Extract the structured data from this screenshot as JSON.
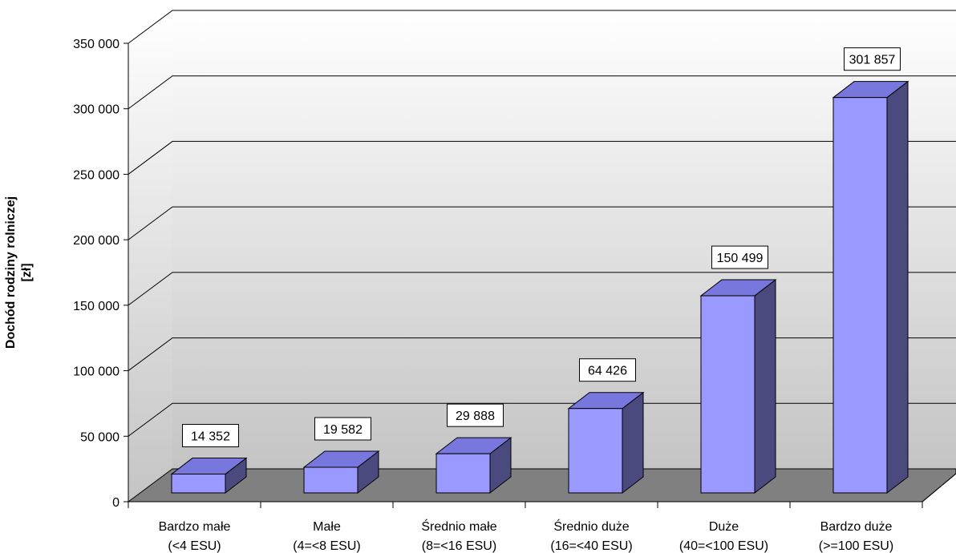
{
  "chart_data": {
    "type": "bar",
    "title": "",
    "ylabel_lines": [
      "Dochód rodziny rolniczej",
      "[zł]"
    ],
    "xlabel": "",
    "ylim": [
      0,
      350000
    ],
    "yticks": [
      0,
      50000,
      100000,
      150000,
      200000,
      250000,
      300000,
      350000
    ],
    "ytick_labels": [
      "0",
      "50 000",
      "100 000",
      "150 000",
      "200 000",
      "250 000",
      "300 000",
      "350 000"
    ],
    "categories": [
      {
        "line1": "Bardzo małe",
        "line2": "(<4 ESU)"
      },
      {
        "line1": "Małe",
        "line2": "(4=<8 ESU)"
      },
      {
        "line1": "Średnio małe",
        "line2": "(8=<16 ESU)"
      },
      {
        "line1": "Średnio duże",
        "line2": "(16=<40 ESU)"
      },
      {
        "line1": "Duże",
        "line2": "(40=<100 ESU)"
      },
      {
        "line1": "Bardzo duże",
        "line2": "(>=100 ESU)"
      }
    ],
    "values": [
      14352,
      19582,
      29888,
      64426,
      150499,
      301857
    ],
    "value_labels": [
      "14 352",
      "19 582",
      "29 888",
      "64 426",
      "150 499",
      "301 857"
    ],
    "grid": true,
    "style": "3d-column",
    "colors": {
      "bar_front": "#9999ff",
      "bar_top": "#7777dd",
      "bar_side": "#4b4a7e",
      "floor": "#808080",
      "wall_top": "#ffffff",
      "wall_bottom": "#c4c4c4"
    }
  }
}
